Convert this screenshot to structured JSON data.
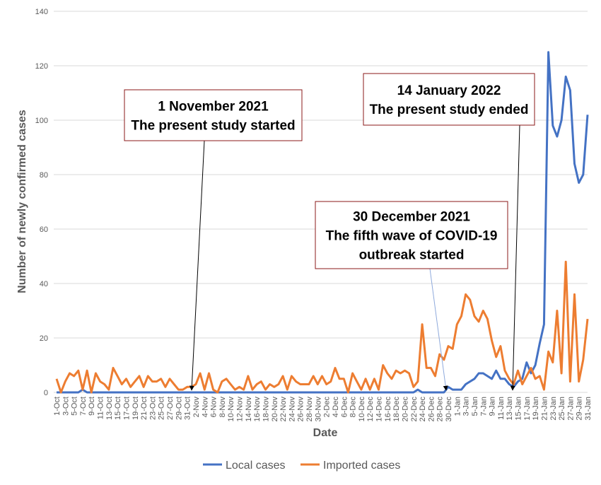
{
  "chart_data": {
    "type": "line",
    "ylabel": "Number of newly confirmed cases",
    "xlabel": "Date",
    "categories": [
      "1-Oct",
      null,
      "3-Oct",
      null,
      "5-Oct",
      null,
      "7-Oct",
      null,
      "9-Oct",
      null,
      "11-Oct",
      null,
      "13-Oct",
      null,
      "15-Oct",
      null,
      "17-Oct",
      null,
      "19-Oct",
      null,
      "21-Oct",
      null,
      "23-Oct",
      null,
      "25-Oct",
      null,
      "27-Oct",
      null,
      "29-Oct",
      null,
      "31-Oct",
      null,
      "2-Nov",
      null,
      "4-Nov",
      null,
      "6-Nov",
      null,
      "8-Nov",
      null,
      "10-Nov",
      null,
      "12-Nov",
      null,
      "14-Nov",
      null,
      "16-Nov",
      null,
      "18-Nov",
      null,
      "20-Nov",
      null,
      "22-Nov",
      null,
      "24-Nov",
      null,
      "26-Nov",
      null,
      "28-Nov",
      null,
      "30-Nov",
      null,
      "2-Dec",
      null,
      "4-Dec",
      null,
      "6-Dec",
      null,
      "8-Dec",
      null,
      "10-Dec",
      null,
      "12-Dec",
      null,
      "14-Dec",
      null,
      "16-Dec",
      null,
      "18-Dec",
      null,
      "20-Dec",
      null,
      "22-Dec",
      null,
      "24-Dec",
      null,
      "26-Dec",
      null,
      "28-Dec",
      null,
      "30-Dec",
      null,
      "1-Jan",
      null,
      "3-Jan",
      null,
      "5-Jan",
      null,
      "7-Jan",
      null,
      "9-Jan",
      null,
      "11-Jan",
      null,
      "13-Jan",
      null,
      "15-Jan",
      null,
      "17-Jan",
      null,
      "19-Jan",
      null,
      "21-Jan",
      null,
      "23-Jan",
      null,
      "25-Jan",
      null,
      "27-Jan",
      null,
      "29-Jan",
      null,
      "31-Jan"
    ],
    "series": [
      {
        "name": "Local cases",
        "color": "#4472c4",
        "values": [
          0,
          0,
          0,
          0,
          0,
          0,
          1,
          0,
          0,
          0,
          0,
          0,
          0,
          0,
          0,
          0,
          0,
          0,
          0,
          0,
          0,
          0,
          0,
          0,
          0,
          0,
          0,
          0,
          0,
          0,
          0,
          0,
          0,
          0,
          0,
          0,
          0,
          0,
          0,
          0,
          0,
          0,
          0,
          0,
          0,
          0,
          0,
          0,
          0,
          0,
          0,
          0,
          0,
          0,
          0,
          0,
          0,
          0,
          0,
          0,
          0,
          0,
          0,
          0,
          0,
          0,
          0,
          0,
          0,
          0,
          0,
          0,
          0,
          0,
          0,
          0,
          0,
          0,
          0,
          0,
          0,
          0,
          0,
          1,
          0,
          0,
          0,
          0,
          0,
          0,
          2,
          1,
          1,
          1,
          3,
          4,
          5,
          7,
          7,
          6,
          5,
          8,
          5,
          5,
          3,
          2,
          4,
          5,
          11,
          7,
          10,
          18,
          25,
          125,
          98,
          94,
          100,
          116,
          111,
          84,
          77,
          80,
          102
        ]
      },
      {
        "name": "Imported cases",
        "color": "#ed7d31",
        "values": [
          5,
          0,
          4,
          7,
          6,
          8,
          1,
          8,
          0,
          7,
          4,
          3,
          1,
          9,
          6,
          3,
          5,
          2,
          4,
          6,
          2,
          6,
          4,
          4,
          5,
          2,
          5,
          3,
          1,
          1,
          2,
          2,
          3,
          7,
          1,
          7,
          1,
          0,
          4,
          5,
          3,
          1,
          2,
          1,
          6,
          1,
          3,
          4,
          1,
          3,
          2,
          3,
          6,
          1,
          6,
          4,
          3,
          3,
          3,
          6,
          3,
          6,
          3,
          4,
          9,
          5,
          5,
          0,
          7,
          4,
          1,
          5,
          1,
          5,
          1,
          10,
          7,
          5,
          8,
          7,
          8,
          7,
          2,
          4,
          25,
          9,
          9,
          6,
          14,
          12,
          17,
          16,
          25,
          28,
          36,
          34,
          28,
          26,
          30,
          27,
          19,
          13,
          17,
          8,
          5,
          3,
          8,
          3,
          6,
          9,
          5,
          6,
          1,
          15,
          11,
          30,
          7,
          48,
          4,
          36,
          4,
          12,
          27
        ]
      }
    ],
    "ylim": [
      0,
      140
    ],
    "yticks": [
      0,
      20,
      40,
      60,
      80,
      100,
      120,
      140
    ],
    "grid": true,
    "legend": "bottom",
    "annotations": [
      {
        "lines": [
          "1 November 2021",
          "The present study started"
        ]
      },
      {
        "lines": [
          "14 January 2022",
          "The present study ended"
        ]
      },
      {
        "lines": [
          "30 December 2021",
          "The fifth wave of COVID-19",
          "outbreak started"
        ]
      }
    ]
  }
}
